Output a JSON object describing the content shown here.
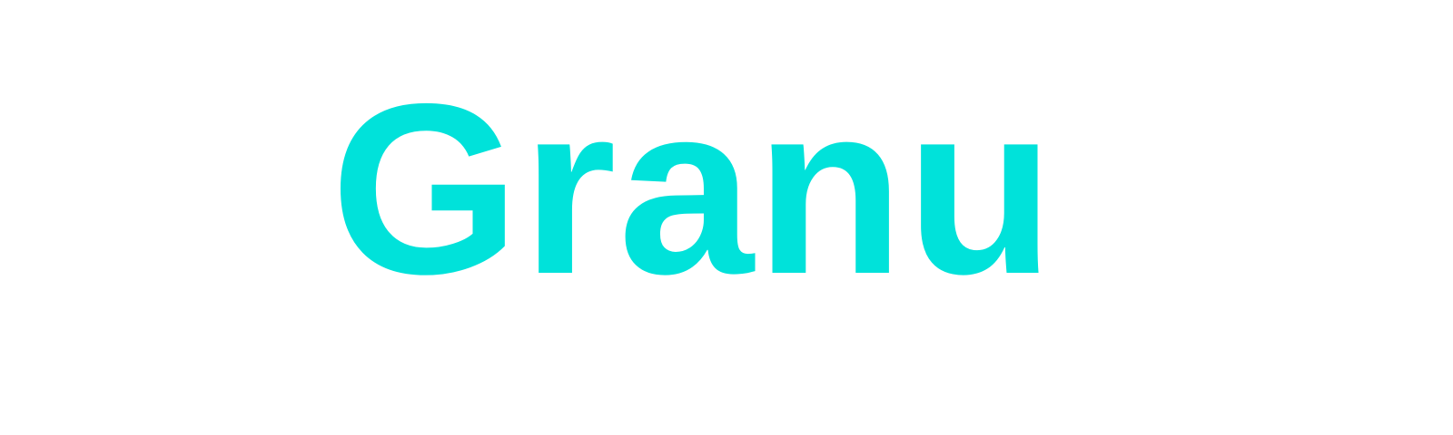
{
  "wordmark": {
    "text": "Granu",
    "color": "#00e2da"
  },
  "background_color": "#ffffff"
}
